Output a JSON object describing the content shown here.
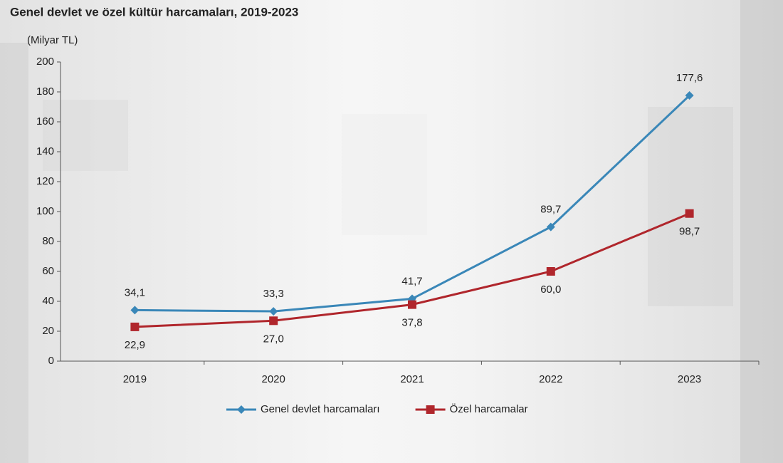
{
  "chart_data": {
    "type": "line",
    "title": "Genel devlet ve özel kültür harcamaları, 2019-2023",
    "y_axis_label": "(Milyar TL)",
    "categories": [
      "2019",
      "2020",
      "2021",
      "2022",
      "2023"
    ],
    "series": [
      {
        "name": "Genel devlet harcamaları",
        "color": "#3a87b8",
        "marker": "diamond",
        "values": [
          34.1,
          33.3,
          41.7,
          89.7,
          177.6
        ],
        "value_labels": [
          "34,1",
          "33,3",
          "41,7",
          "89,7",
          "177,6"
        ]
      },
      {
        "name": "Özel harcamalar",
        "color": "#b0262c",
        "marker": "square",
        "values": [
          22.9,
          27.0,
          37.8,
          60.0,
          98.7
        ],
        "value_labels": [
          "22,9",
          "27,0",
          "37,8",
          "60,0",
          "98,7"
        ]
      }
    ],
    "ylim": [
      0,
      200
    ],
    "yticks": [
      0,
      20,
      40,
      60,
      80,
      100,
      120,
      140,
      160,
      180,
      200
    ],
    "grid": false,
    "legend": "bottom"
  }
}
